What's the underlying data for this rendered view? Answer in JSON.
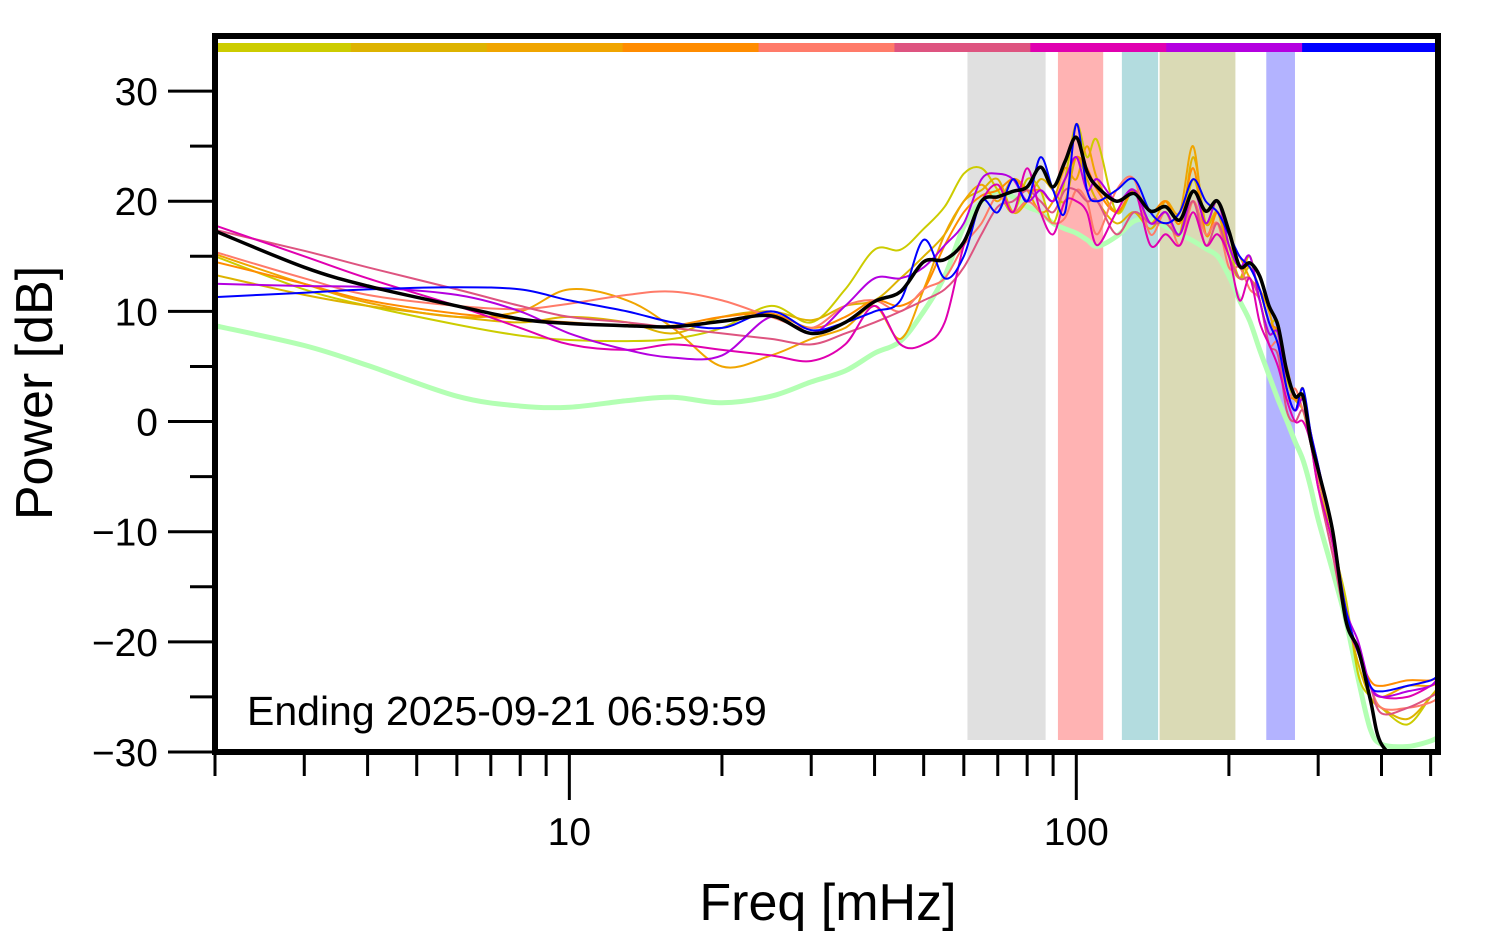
{
  "chart_data": {
    "type": "line",
    "xlabel": "Freq [mHz]",
    "ylabel": "Power [dB]",
    "xscale": "log",
    "xlim": [
      2,
      517
    ],
    "ylim": [
      -30,
      35
    ],
    "grid": false,
    "annotation": "Ending 2025-09-21 06:59:59",
    "x_tick_labels": [
      {
        "value": 10,
        "label": "10"
      },
      {
        "value": 100,
        "label": "100"
      }
    ],
    "x_minor_ticks": [
      2,
      3,
      4,
      5,
      6,
      7,
      8,
      9,
      20,
      30,
      40,
      50,
      60,
      70,
      80,
      90,
      200,
      300,
      400,
      500
    ],
    "y_tick_labels": [
      {
        "value": 30,
        "label": "30"
      },
      {
        "value": 20,
        "label": "20"
      },
      {
        "value": 10,
        "label": "10"
      },
      {
        "value": 0,
        "label": "0"
      },
      {
        "value": -10,
        "label": "−10"
      },
      {
        "value": -20,
        "label": "−20"
      },
      {
        "value": -30,
        "label": "−30"
      }
    ],
    "y_minor_ticks": [
      25,
      15,
      5,
      -5,
      -15,
      -25
    ],
    "color_bar": [
      "#cccc00",
      "#ddb300",
      "#f0a500",
      "#ff8c00",
      "#ff7b69",
      "#de5480",
      "#e000b0",
      "#b400e0",
      "#0000ff"
    ],
    "bands": [
      {
        "from": 61,
        "to": 87,
        "color": "#e0e0e0"
      },
      {
        "from": 92,
        "to": 113,
        "color": "#ffb3b3"
      },
      {
        "from": 123,
        "to": 145,
        "color": "#b3dcdf"
      },
      {
        "from": 146,
        "to": 206,
        "color": "#dadab5"
      },
      {
        "from": 237,
        "to": 270,
        "color": "#b3b3ff"
      }
    ],
    "x": [
      2,
      3,
      4,
      6,
      8,
      10,
      13,
      16,
      20,
      25,
      30,
      35,
      40,
      45,
      50,
      55,
      60,
      65,
      70,
      75,
      80,
      85,
      90,
      95,
      100,
      105,
      110,
      120,
      130,
      140,
      150,
      160,
      170,
      180,
      190,
      200,
      210,
      220,
      230,
      240,
      250,
      260,
      270,
      280,
      290,
      300,
      320,
      340,
      360,
      380,
      400,
      450,
      500,
      520
    ],
    "series": [
      {
        "color": "#b3ffb3",
        "width": 5,
        "values": [
          8.7,
          6.9,
          5.1,
          2.3,
          1.4,
          1.3,
          1.9,
          2.2,
          1.7,
          2.3,
          3.6,
          4.6,
          6.2,
          7.3,
          10,
          13.2,
          17.7,
          20,
          20.9,
          20.4,
          19.5,
          19,
          18,
          17.5,
          17.1,
          16.5,
          15.9,
          16.8,
          18.2,
          18.3,
          17.7,
          17,
          16.4,
          15.7,
          15,
          13.2,
          11,
          9.1,
          6.5,
          4.2,
          2,
          0.1,
          -1.8,
          -3.5,
          -6,
          -8.9,
          -13.5,
          -18,
          -23.4,
          -27.9,
          -29.3,
          -29.5,
          -29,
          -28.6
        ]
      },
      {
        "color": "#cccc00",
        "width": 2,
        "values": [
          15,
          12,
          10.5,
          8.8,
          7.8,
          7.4,
          7.3,
          7.5,
          8.5,
          10.5,
          9,
          12,
          15.6,
          15.6,
          17.5,
          19.5,
          22.5,
          23,
          21,
          19,
          22,
          21,
          18,
          22,
          27,
          24,
          25.5,
          19,
          21,
          18,
          19,
          17,
          22,
          18,
          20,
          16,
          13,
          14,
          12,
          9,
          9,
          4,
          2,
          1,
          -2,
          -5,
          -11,
          -16,
          -23,
          -25,
          -26,
          -27.5,
          -25,
          -24
        ]
      },
      {
        "color": "#ddb300",
        "width": 2,
        "values": [
          13.3,
          11.5,
          10.5,
          9.5,
          9,
          9.5,
          9,
          8,
          9.5,
          10,
          9.2,
          10.5,
          11,
          13,
          15,
          17,
          20,
          21,
          22,
          19,
          20,
          22,
          21,
          20,
          24,
          22,
          20,
          18,
          19,
          17.5,
          19,
          17,
          24,
          18,
          19,
          15,
          13,
          15,
          11,
          8,
          8,
          3,
          1,
          3,
          -2,
          -5,
          -10,
          -17,
          -22,
          -25,
          -26,
          -27,
          -25,
          -24
        ]
      },
      {
        "color": "#f0a500",
        "width": 2,
        "values": [
          15.2,
          12.5,
          10.8,
          9.5,
          10,
          12,
          11,
          8.5,
          5,
          6,
          7.5,
          8.5,
          10.5,
          7.5,
          12,
          17,
          20,
          21.5,
          20,
          22,
          21,
          19,
          20,
          23,
          22,
          25,
          22,
          19,
          21,
          18,
          20,
          19,
          25,
          17,
          19,
          16,
          15,
          13,
          12,
          10,
          7,
          5,
          2,
          2,
          -1,
          -5,
          -10,
          -17,
          -21,
          -24,
          -25,
          -24,
          -24,
          -23.5
        ]
      },
      {
        "color": "#ff8c00",
        "width": 2,
        "values": [
          14.5,
          12.5,
          11,
          9.8,
          9.3,
          9,
          8.7,
          8.7,
          9.5,
          9.8,
          8.5,
          9.5,
          11,
          10.5,
          12,
          16,
          19,
          20.5,
          21,
          22,
          21,
          21,
          20,
          22,
          24,
          23,
          21,
          19,
          21,
          19,
          20,
          18,
          23,
          17,
          19,
          16,
          14,
          14,
          12,
          9,
          8,
          3,
          2,
          2,
          -1,
          -5,
          -10,
          -17,
          -21,
          -23.5,
          -24,
          -23.5,
          -23.5,
          -23
        ]
      },
      {
        "color": "#ff7b69",
        "width": 2,
        "values": [
          15.4,
          13,
          11.5,
          10.5,
          10.2,
          10.7,
          11.5,
          11.8,
          11,
          9.5,
          8.5,
          10.5,
          11,
          10,
          12,
          13,
          16,
          18,
          20.5,
          19,
          20,
          19,
          18,
          18.5,
          21,
          20,
          17,
          21,
          22,
          17,
          19,
          16,
          20,
          17,
          18,
          14,
          14,
          12,
          11,
          7,
          7,
          2,
          3,
          1,
          -1,
          -5,
          -10,
          -17,
          -21,
          -24,
          -26,
          -26,
          -25.5,
          -25
        ]
      },
      {
        "color": "#de5480",
        "width": 2,
        "values": [
          17.4,
          15.5,
          14,
          12,
          10.5,
          9.5,
          9,
          8.5,
          8,
          7.5,
          7,
          8,
          9,
          10,
          11,
          12,
          14,
          17,
          19.5,
          20,
          21,
          20,
          19,
          21,
          21,
          20,
          20,
          17,
          19,
          18,
          18,
          17,
          20,
          16,
          18,
          15,
          13,
          13,
          11,
          7,
          6,
          1,
          0,
          1,
          -2,
          -6,
          -12,
          -18,
          -21,
          -24,
          -26.5,
          -26,
          -25,
          -24.5
        ]
      },
      {
        "color": "#e000b0",
        "width": 2,
        "values": [
          17.8,
          15,
          13,
          10.5,
          8.5,
          7,
          6.5,
          7,
          6.5,
          6,
          5.5,
          7,
          10.5,
          7,
          7,
          9,
          16,
          20,
          21.5,
          19,
          23,
          19,
          17,
          20,
          20,
          19,
          16,
          19,
          21,
          16,
          17,
          16,
          19,
          16,
          17,
          15,
          11,
          13,
          9,
          7,
          5,
          2,
          0,
          0,
          -2,
          -6,
          -11,
          -18,
          -21,
          -24,
          -25,
          -25,
          -24,
          -23.5
        ]
      },
      {
        "color": "#b400e0",
        "width": 2,
        "values": [
          12.5,
          12.3,
          12.2,
          11.5,
          10,
          8,
          6.5,
          5.8,
          6,
          9.5,
          8,
          10.5,
          13,
          13,
          14,
          16,
          18,
          22,
          22.5,
          22,
          20,
          21,
          20,
          22,
          24,
          21,
          22,
          20,
          21,
          18,
          19,
          17,
          21,
          18,
          20,
          16,
          14,
          15,
          11,
          8,
          8,
          3,
          1,
          2,
          -1,
          -4,
          -10,
          -17,
          -20,
          -24,
          -25,
          -24.5,
          -24,
          -23
        ]
      },
      {
        "color": "#0000ff",
        "width": 2,
        "values": [
          11.3,
          11.7,
          12,
          12.2,
          12,
          11,
          10,
          9,
          8.5,
          10,
          8.3,
          9,
          10,
          11,
          16.5,
          13,
          15,
          20,
          19,
          22,
          20,
          24,
          21,
          19,
          27,
          21,
          20,
          21,
          22,
          19,
          18,
          19,
          22,
          20,
          19,
          17,
          15,
          14,
          12,
          9,
          7,
          3,
          1,
          3,
          -1,
          -4,
          -10,
          -17,
          -21,
          -24,
          -24.5,
          -24,
          -23.5,
          -23
        ]
      },
      {
        "color": "#000000",
        "width": 3.5,
        "values": [
          17.3,
          14,
          12.3,
          10.5,
          9.3,
          8.9,
          8.7,
          8.6,
          9.1,
          9.6,
          8.0,
          9.0,
          10.9,
          11.8,
          14.5,
          14.7,
          16.3,
          20,
          20.4,
          20.9,
          21.3,
          23.1,
          21.3,
          23.6,
          25.8,
          22.7,
          21.3,
          20,
          20.7,
          19.1,
          19.5,
          18.3,
          20.9,
          19.1,
          20,
          17.3,
          14.1,
          14.4,
          13.2,
          10.5,
          8.7,
          4.6,
          2.3,
          2.3,
          -1.7,
          -4.4,
          -9.8,
          -18,
          -20.7,
          -25.2,
          -29.3,
          -31,
          -31,
          -31
        ]
      }
    ]
  }
}
